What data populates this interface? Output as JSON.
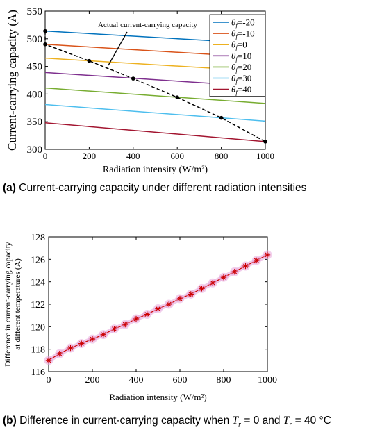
{
  "chart_data": [
    {
      "type": "line",
      "xlabel": "Radiation intensity (W/m²)",
      "ylabel": "Current-carrying capacity (A)",
      "xlim": [
        0,
        1000
      ],
      "ylim": [
        300,
        550
      ],
      "xticks": [
        0,
        200,
        400,
        600,
        800,
        1000
      ],
      "yticks": [
        300,
        350,
        400,
        450,
        500,
        550
      ],
      "grid": false,
      "legend_position": "top-right",
      "annotation": "Actual current-carrying capacity",
      "x": [
        0,
        1000
      ],
      "series": [
        {
          "name": "θf=-20",
          "values": [
            514,
            491
          ],
          "color": "#0072BD"
        },
        {
          "name": "θf=-10",
          "values": [
            490,
            466
          ],
          "color": "#D95319"
        },
        {
          "name": "θf=0",
          "values": [
            465,
            441
          ],
          "color": "#EDB120"
        },
        {
          "name": "θf=10",
          "values": [
            439,
            413
          ],
          "color": "#7E2F8E"
        },
        {
          "name": "θf=20",
          "values": [
            411,
            383
          ],
          "color": "#77AC30"
        },
        {
          "name": "θf=30",
          "values": [
            381,
            351
          ],
          "color": "#4DBEEE"
        },
        {
          "name": "θf=40",
          "values": [
            348,
            314
          ],
          "color": "#A2142F"
        }
      ],
      "actual_series": {
        "x": [
          0,
          0,
          200,
          400,
          600,
          800,
          1000
        ],
        "values": [
          514,
          490,
          460,
          428,
          394,
          357,
          314
        ],
        "color": "#000000"
      }
    },
    {
      "type": "line",
      "xlabel": "Radiation intensity (W/m²)",
      "ylabel_lines": [
        "Difference in current-carrying capacity",
        "at different temperatures (A)"
      ],
      "xlim": [
        0,
        1000
      ],
      "ylim": [
        116,
        128
      ],
      "xticks": [
        0,
        200,
        400,
        600,
        800,
        1000
      ],
      "yticks": [
        116,
        118,
        120,
        122,
        124,
        126,
        128
      ],
      "grid": false,
      "x": [
        0,
        50,
        100,
        150,
        200,
        250,
        300,
        350,
        400,
        450,
        500,
        550,
        600,
        650,
        700,
        750,
        800,
        850,
        900,
        950,
        1000
      ],
      "series": [
        {
          "values": [
            117.0,
            117.6,
            118.1,
            118.5,
            118.9,
            119.3,
            119.8,
            120.2,
            120.7,
            121.1,
            121.6,
            122.0,
            122.5,
            122.9,
            123.4,
            123.9,
            124.4,
            124.9,
            125.4,
            125.9,
            126.4
          ],
          "color": "#CC0000",
          "highlight": "#E8A8DC"
        }
      ]
    }
  ],
  "captions": {
    "a_label": "(a)",
    "a_text": " Current-carrying capacity under different radiation intensities",
    "b_label": "(b)",
    "b_text": " Difference in current-carrying capacity when ",
    "b_t1": "T",
    "b_sub1": "r",
    "b_eq1": " = 0 and ",
    "b_t2": "T",
    "b_sub2": "r",
    "b_eq2": " = 40 °C"
  }
}
